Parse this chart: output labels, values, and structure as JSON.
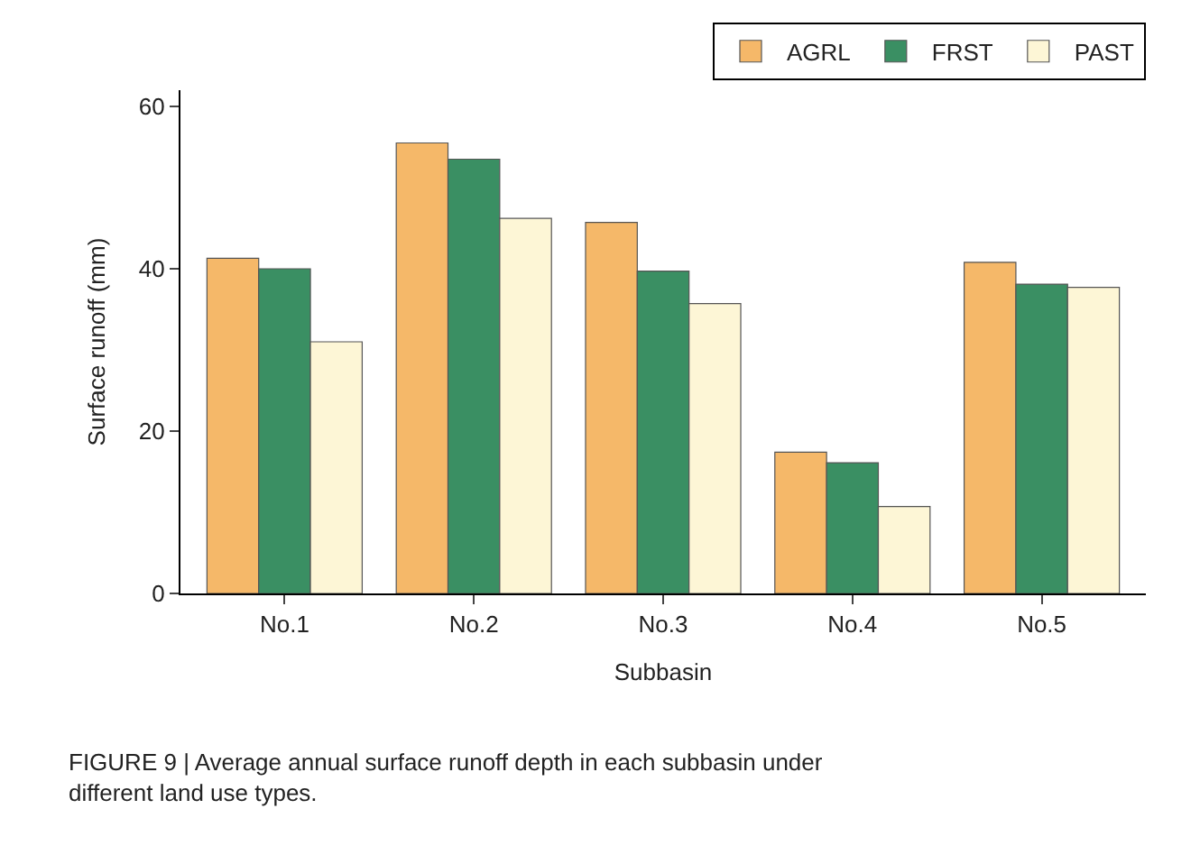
{
  "chart_data": {
    "type": "bar",
    "xlabel": "Subbasin",
    "ylabel": "Surface runoff (mm)",
    "categories": [
      "No.1",
      "No.2",
      "No.3",
      "No.4",
      "No.5"
    ],
    "series": [
      {
        "name": "AGRL",
        "color": "#f5b869",
        "values": [
          41.3,
          55.5,
          45.7,
          17.4,
          40.8
        ]
      },
      {
        "name": "FRST",
        "color": "#3a8f63",
        "values": [
          40.0,
          53.5,
          39.7,
          16.1,
          38.1
        ]
      },
      {
        "name": "PAST",
        "color": "#fdf6d6",
        "values": [
          31.0,
          46.2,
          35.7,
          10.7,
          37.7
        ]
      }
    ],
    "ylim": [
      0,
      62
    ],
    "yticks": [
      0,
      20,
      40,
      60
    ],
    "legend": "top right",
    "annotations": [
      "FIGURE 9 | Average annual surface runoff depth in each subbasin under different land use types."
    ]
  }
}
